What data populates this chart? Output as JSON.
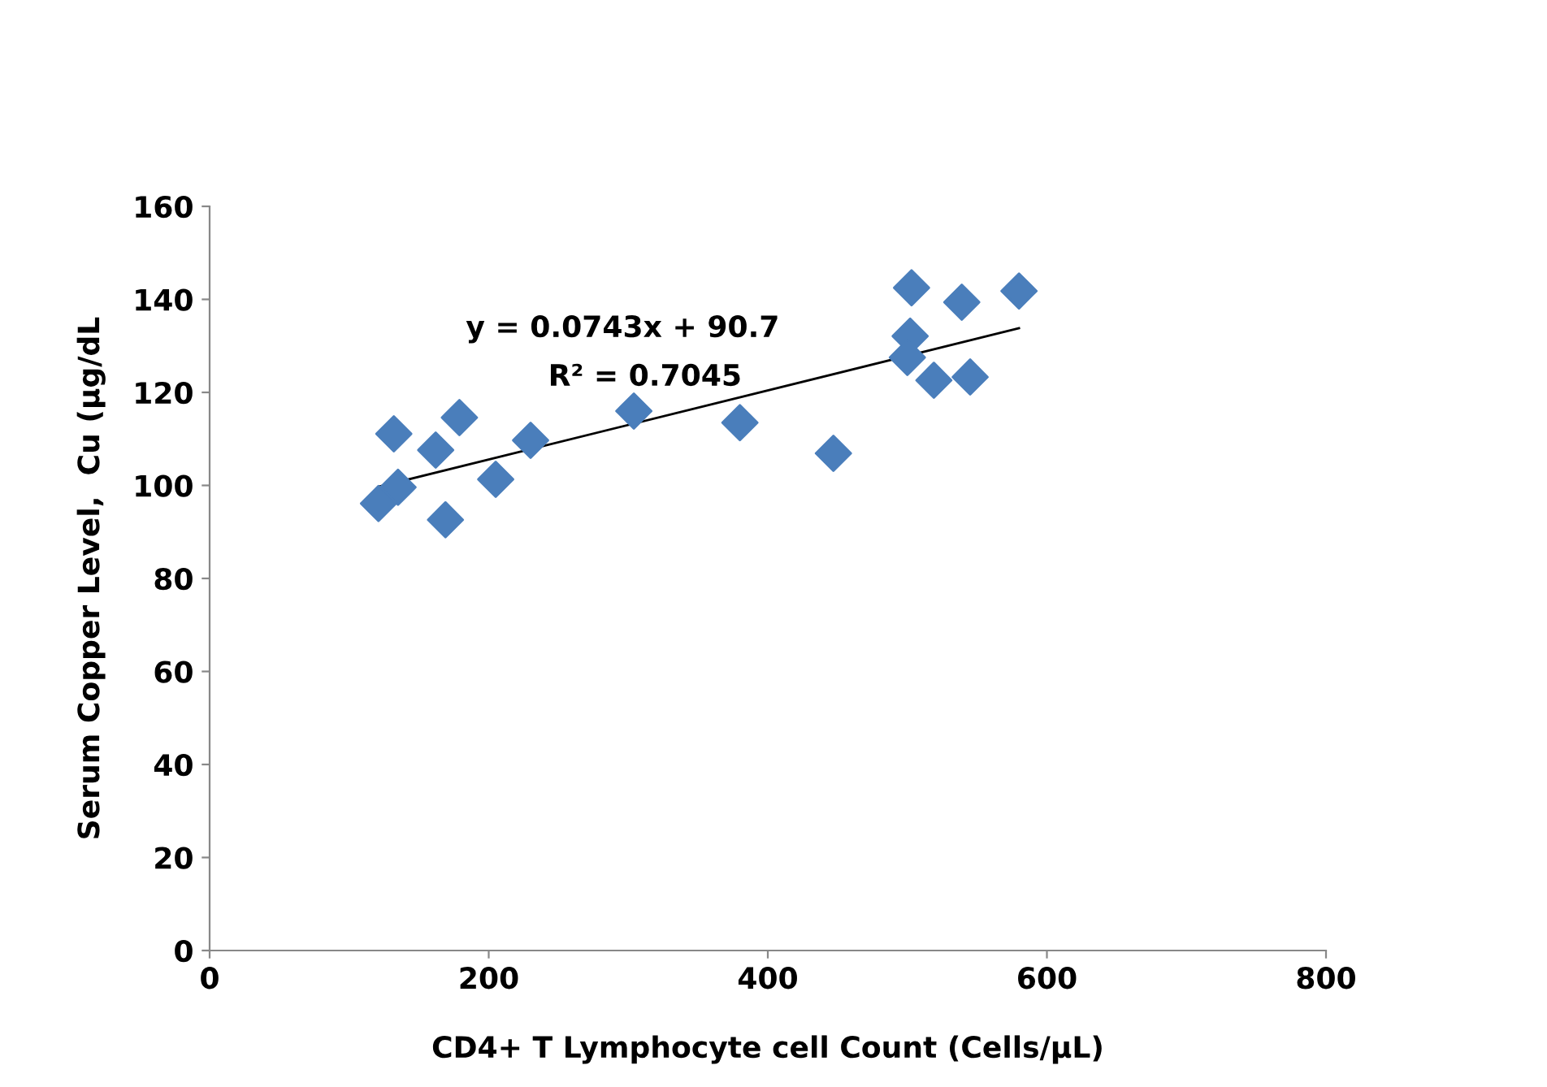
{
  "chart_data": {
    "type": "scatter",
    "xlabel": "CD4+ T Lymphocyte cell Count (Cells/µL)",
    "ylabel": "Serum Copper Level,  Cu (µg/dL",
    "xlim": [
      0,
      800
    ],
    "ylim": [
      0,
      160
    ],
    "xticks": [
      0,
      200,
      400,
      600,
      800
    ],
    "yticks": [
      0,
      20,
      40,
      60,
      80,
      100,
      120,
      140,
      160
    ],
    "grid": false,
    "legend": false,
    "marker": "diamond",
    "series": [
      {
        "color": "#4a7ebb",
        "x": [
          121,
          135,
          132,
          162,
          179,
          169,
          205,
          230,
          304,
          380,
          447,
          503,
          502,
          500,
          519,
          545,
          539,
          580
        ],
        "values": [
          96.1,
          99.6,
          111.1,
          107.6,
          114.6,
          92.6,
          101.3,
          109.7,
          116.0,
          113.5,
          106.9,
          142.5,
          132.1,
          127.5,
          122.6,
          123.3,
          139.4,
          141.8
        ]
      },
      {
        "type": "line",
        "color": "#000000",
        "marker": "none",
        "x": [
          121,
          580
        ],
        "values": [
          99.7,
          133.8
        ]
      }
    ],
    "annotations": [
      "y = 0.0743x + 90.7",
      "R² = 0.7045"
    ]
  }
}
